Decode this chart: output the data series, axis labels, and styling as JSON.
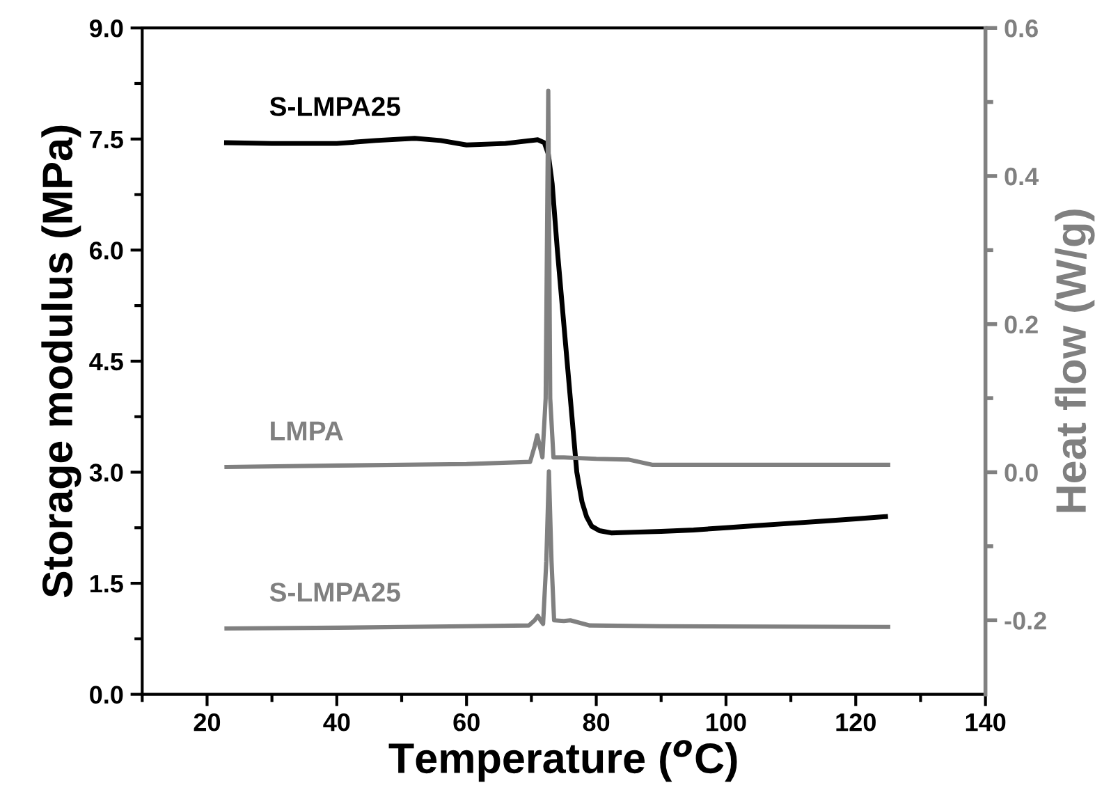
{
  "chart_data": {
    "type": "line",
    "xlabel": "Temperature ($^{o}$C)",
    "ylabel": "Storage modulus (MPa)",
    "y2label": "Heat flow (W/g)",
    "xlim": [
      10,
      140
    ],
    "xticks": [
      {
        "value": 10,
        "label": null
      },
      20,
      {
        "value": 30,
        "label": null
      },
      40,
      {
        "value": 50,
        "label": null
      },
      60,
      {
        "value": 70,
        "label": null
      },
      80,
      {
        "value": 90,
        "label": null
      },
      100,
      {
        "value": 110,
        "label": null
      },
      120,
      {
        "value": 130,
        "label": null
      },
      140
    ],
    "ylim": [
      0,
      9
    ],
    "yticks": [
      {
        "value": 0,
        "label": "0.0"
      },
      {
        "value": 0.75,
        "label": null
      },
      1.5,
      {
        "value": 2.25,
        "label": null
      },
      {
        "value": 3,
        "label": "3.0"
      },
      {
        "value": 3.75,
        "label": null
      },
      4.5,
      {
        "value": 5.25,
        "label": null
      },
      {
        "value": 6,
        "label": "6.0"
      },
      {
        "value": 6.75,
        "label": null
      },
      7.5,
      {
        "value": 8.25,
        "label": null
      },
      {
        "value": 9,
        "label": "9.0"
      }
    ],
    "y2lim": [
      -0.3,
      0.6
    ],
    "y2ticks": [
      -0.2,
      {
        "value": -0.1,
        "label": null
      },
      {
        "value": 0,
        "label": "0.0"
      },
      {
        "value": 0.1,
        "label": null
      },
      0.2,
      {
        "value": 0.3,
        "label": null
      },
      0.4,
      {
        "value": 0.5,
        "label": null
      },
      0.6
    ],
    "series": [
      {
        "name": "S-LMPA25",
        "color": "#000000",
        "x": [
          23,
          30,
          40,
          46,
          52,
          56,
          60,
          66,
          71,
          72,
          72.6,
          73.2,
          74,
          75,
          76,
          77,
          77.8,
          78.5,
          79.3,
          80.5,
          82.3,
          86,
          90,
          95,
          100,
          105,
          110,
          115,
          120,
          124.6
        ],
        "values": [
          7.45,
          7.44,
          7.44,
          7.48,
          7.51,
          7.48,
          7.42,
          7.44,
          7.49,
          7.45,
          7.3,
          6.9,
          6.0,
          5.0,
          4.0,
          3.0,
          2.6,
          2.4,
          2.27,
          2.21,
          2.18,
          2.19,
          2.2,
          2.22,
          2.25,
          2.28,
          2.31,
          2.34,
          2.37,
          2.4
        ]
      },
      {
        "name": "LMPA",
        "color": "#808080",
        "axis": "y2",
        "x": [
          23,
          40,
          60,
          69.8,
          70.5,
          70.9,
          71.3,
          71.7,
          72.2,
          72.6,
          72.9,
          73.4,
          75,
          80,
          85,
          88.6,
          100,
          125
        ],
        "values": [
          0.007,
          0.009,
          0.011,
          0.014,
          0.035,
          0.05,
          0.035,
          0.02,
          0.1,
          0.515,
          0.1,
          0.02,
          0.02,
          0.018,
          0.017,
          0.01,
          0.01,
          0.01
        ]
      },
      {
        "name": "S-LMPA25",
        "color": "#808080",
        "axis": "y2",
        "x": [
          23,
          40,
          60,
          69.6,
          70.5,
          71,
          71.4,
          71.8,
          72.3,
          72.7,
          73.1,
          73.5,
          75,
          76,
          79,
          90,
          125
        ],
        "values": [
          -0.211,
          -0.21,
          -0.208,
          -0.207,
          -0.2,
          -0.194,
          -0.2,
          -0.205,
          -0.12,
          0.001,
          -0.12,
          -0.2,
          -0.201,
          -0.2,
          -0.207,
          -0.208,
          -0.209
        ]
      }
    ]
  }
}
